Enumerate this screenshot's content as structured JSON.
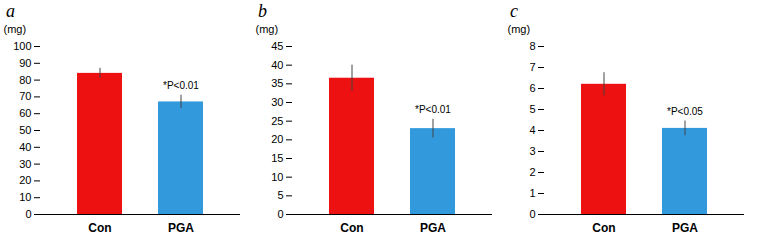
{
  "chart_data": [
    {
      "type": "bar",
      "title": "a",
      "ylabel": "(mg)",
      "categories": [
        "Con",
        "PGA"
      ],
      "values": [
        84,
        67
      ],
      "errors": [
        3,
        4
      ],
      "colors": [
        "#ee1111",
        "#3399dd"
      ],
      "ylim": [
        0,
        100
      ],
      "yticks": [
        0,
        10,
        20,
        30,
        40,
        50,
        60,
        70,
        80,
        90,
        100
      ],
      "annotations": [
        {
          "text": "*P<0.01",
          "x": "PGA"
        }
      ]
    },
    {
      "type": "bar",
      "title": "b",
      "ylabel": "(mg)",
      "categories": [
        "Con",
        "PGA"
      ],
      "values": [
        36.5,
        23
      ],
      "errors": [
        3.5,
        2.5
      ],
      "colors": [
        "#ee1111",
        "#3399dd"
      ],
      "ylim": [
        0,
        45
      ],
      "yticks": [
        0,
        5,
        10,
        15,
        20,
        25,
        30,
        35,
        40,
        45
      ],
      "annotations": [
        {
          "text": "*P<0.01",
          "x": "PGA"
        }
      ]
    },
    {
      "type": "bar",
      "title": "c",
      "ylabel": "(mg)",
      "categories": [
        "Con",
        "PGA"
      ],
      "values": [
        6.2,
        4.1
      ],
      "errors": [
        0.55,
        0.35
      ],
      "colors": [
        "#ee1111",
        "#3399dd"
      ],
      "ylim": [
        0,
        8
      ],
      "yticks": [
        0,
        1,
        2,
        3,
        4,
        5,
        6,
        7,
        8
      ],
      "annotations": [
        {
          "text": "*P<0.05",
          "x": "PGA"
        }
      ]
    }
  ]
}
